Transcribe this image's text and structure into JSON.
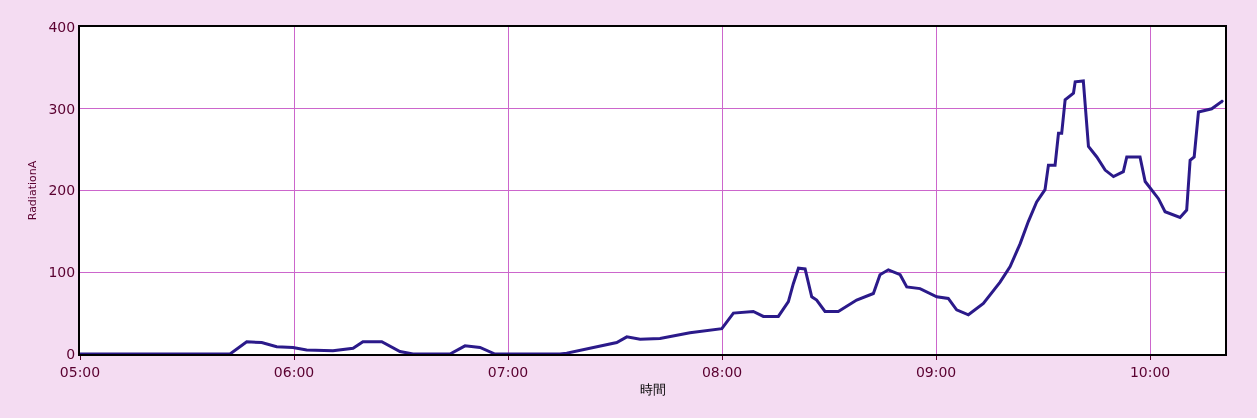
{
  "chart_data": {
    "type": "line",
    "xlabel": "時間",
    "ylabel": "RadiationA",
    "x": [
      5.0,
      5.701,
      5.779,
      5.849,
      5.919,
      5.995,
      6.059,
      6.182,
      6.276,
      6.322,
      6.41,
      6.495,
      6.556,
      6.729,
      6.799,
      6.869,
      6.939,
      7.243,
      7.274,
      7.508,
      7.555,
      7.617,
      7.71,
      7.85,
      7.999,
      8.053,
      8.146,
      8.193,
      8.263,
      8.31,
      8.333,
      8.357,
      8.388,
      8.419,
      8.442,
      8.481,
      8.543,
      8.629,
      8.707,
      8.738,
      8.777,
      8.832,
      8.863,
      8.925,
      9.003,
      9.057,
      9.096,
      9.151,
      9.221,
      9.299,
      9.346,
      9.393,
      9.431,
      9.47,
      9.509,
      9.525,
      9.556,
      9.572,
      9.587,
      9.603,
      9.642,
      9.65,
      9.688,
      9.712,
      9.751,
      9.79,
      9.829,
      9.875,
      9.891,
      9.953,
      9.977,
      10.039,
      10.07,
      10.14,
      10.171,
      10.187,
      10.206,
      10.226,
      10.288,
      10.336,
      10.341
    ],
    "series": [
      {
        "color": "#2b1a8a",
        "values": [
          0,
          0,
          15,
          14,
          9,
          8,
          5,
          4,
          7,
          15,
          15,
          3,
          0,
          0,
          10,
          8,
          0,
          0,
          1,
          14,
          21,
          18,
          19,
          26,
          31,
          50,
          52,
          46,
          46,
          64,
          86,
          105,
          104,
          70,
          66,
          52,
          52,
          66,
          74,
          97,
          103,
          97,
          82,
          80,
          70,
          68,
          54,
          48,
          62,
          88,
          107,
          135,
          162,
          186,
          201,
          231,
          231,
          270,
          270,
          311,
          319,
          333,
          334,
          254,
          241,
          225,
          217,
          223,
          241,
          241,
          211,
          190,
          174,
          167,
          176,
          237,
          241,
          296,
          300,
          309,
          308
        ]
      }
    ],
    "xlim": [
      5,
      10.35
    ],
    "xticks": [
      {
        "value": 5,
        "label": "05:00"
      },
      {
        "value": 6,
        "label": "06:00"
      },
      {
        "value": 7,
        "label": "07:00"
      },
      {
        "value": 8,
        "label": "08:00"
      },
      {
        "value": 9,
        "label": "09:00"
      },
      {
        "value": 10,
        "label": "10:00"
      }
    ],
    "ylim": [
      0,
      400
    ],
    "yticks": [
      0,
      100,
      200,
      300,
      400
    ],
    "grid": true,
    "marker": "none",
    "line_style": "solid"
  }
}
